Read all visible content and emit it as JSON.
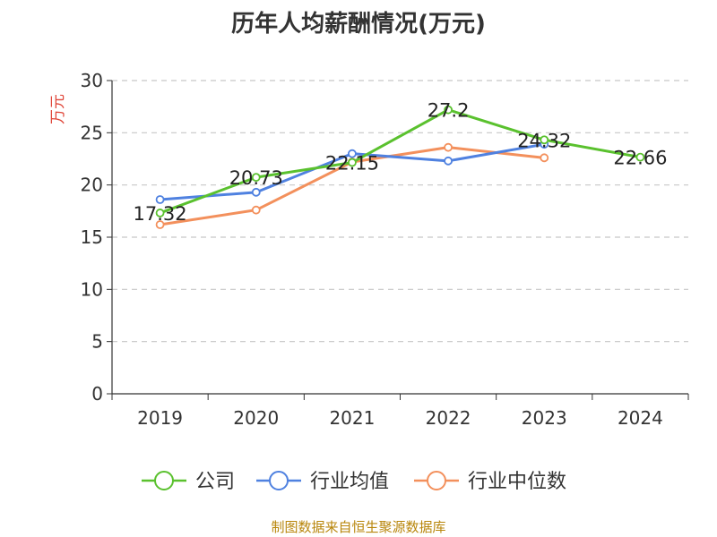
{
  "chart_data": {
    "type": "line",
    "title": "历年人均薪酬情况(万元)",
    "ylabel": "万元",
    "xlabel": "",
    "categories": [
      "2019",
      "2020",
      "2021",
      "2022",
      "2023",
      "2024"
    ],
    "ylim": [
      0,
      30
    ],
    "yticks": [
      0,
      5,
      10,
      15,
      20,
      25,
      30
    ],
    "grid": true,
    "legend_position": "bottom",
    "series": [
      {
        "name": "公司",
        "color": "#5ac12e",
        "values": [
          17.32,
          20.73,
          22.15,
          27.2,
          24.32,
          22.66
        ],
        "show_labels": true
      },
      {
        "name": "行业均值",
        "color": "#4f81e0",
        "values": [
          18.6,
          19.3,
          23.0,
          22.3,
          23.9,
          null
        ],
        "show_labels": false
      },
      {
        "name": "行业中位数",
        "color": "#f3905c",
        "values": [
          16.2,
          17.6,
          22.2,
          23.6,
          22.6,
          null
        ],
        "show_labels": false
      }
    ]
  },
  "source_text": "制图数据来自恒生聚源数据库"
}
